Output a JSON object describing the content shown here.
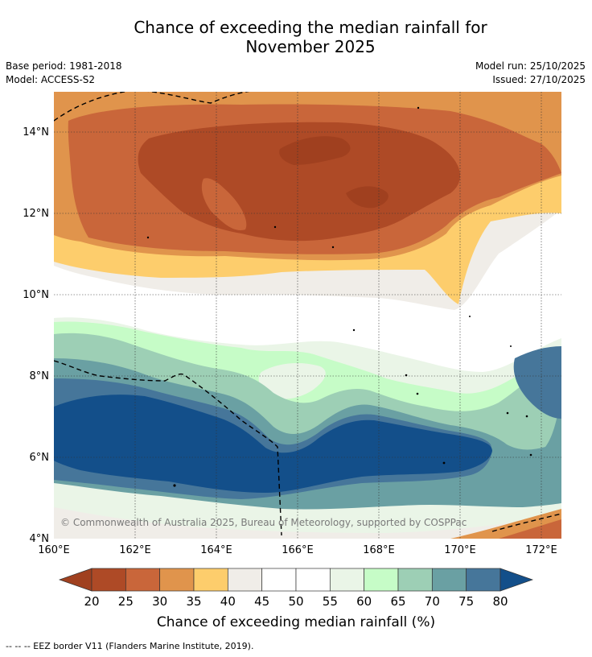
{
  "title_line1": "Chance of exceeding the median rainfall for",
  "title_line2": "November 2025",
  "base_period": "Base period: 1981-2018",
  "model": "Model: ACCESS-S2",
  "model_run": "Model run: 25/10/2025",
  "issued": "Issued: 27/10/2025",
  "lat_labels": [
    "14°N",
    "12°N",
    "10°N",
    "8°N",
    "6°N",
    "4°N"
  ],
  "lon_labels": [
    "160°E",
    "162°E",
    "164°E",
    "166°E",
    "168°E",
    "170°E",
    "172°E"
  ],
  "copyright": "© Commonwealth of Australia 2025, Bureau of Meteorology, supported by COSPPac",
  "colorbar": {
    "title": "Chance of exceeding median rainfall (%)",
    "ticks": [
      "20",
      "25",
      "30",
      "35",
      "40",
      "45",
      "50",
      "55",
      "60",
      "65",
      "70",
      "75",
      "80"
    ],
    "colors": [
      "#a0401f",
      "#ae4a26",
      "#c9663a",
      "#e0944c",
      "#fdcd6c",
      "#f0ede8",
      "#ffffff",
      "#ffffff",
      "#eaf5e7",
      "#c6fcc7",
      "#9dcfb5",
      "#6aa0a3",
      "#46769a",
      "#134f8a"
    ]
  },
  "footer": "-- -- -- EEZ border V11 (Flanders Marine Institute, 2019)."
}
